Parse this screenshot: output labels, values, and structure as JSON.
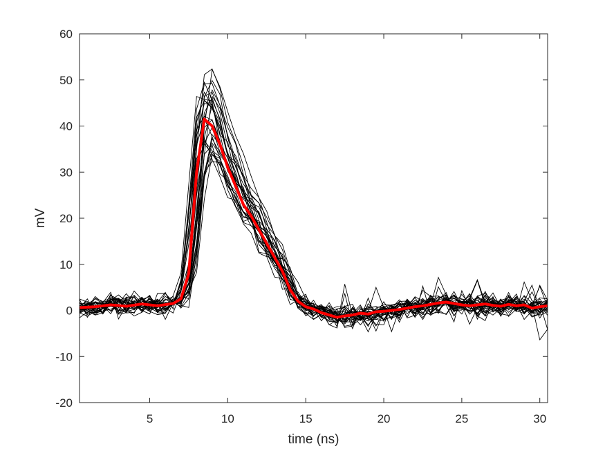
{
  "chart_data": {
    "type": "line",
    "title": "",
    "xlabel": "time (ns)",
    "ylabel": "mV",
    "xlim": [
      0.5,
      30.5
    ],
    "ylim": [
      -20,
      60
    ],
    "xticks": [
      5,
      10,
      15,
      20,
      25,
      30
    ],
    "yticks": [
      -20,
      -10,
      0,
      10,
      20,
      30,
      40,
      50,
      60
    ],
    "grid": false,
    "legend": "none",
    "colors": {
      "traces": "#000000",
      "mean": "#ff0000",
      "axes": "#262626"
    },
    "mean": {
      "x": [
        0.5,
        1.5,
        2.5,
        3.5,
        4.5,
        5.5,
        6.5,
        7.0,
        7.5,
        8.0,
        8.5,
        9.0,
        9.5,
        10.0,
        10.5,
        11.0,
        11.5,
        12.0,
        12.5,
        13.0,
        13.5,
        14.0,
        14.5,
        15.0,
        15.5,
        16.0,
        16.5,
        17.0,
        17.5,
        18.0,
        18.5,
        19.0,
        19.5,
        20.0,
        20.5,
        21.0,
        21.5,
        22.0,
        22.5,
        23.0,
        23.5,
        24.0,
        24.5,
        25.0,
        25.5,
        26.0,
        26.5,
        27.0,
        27.5,
        28.0,
        28.5,
        29.0,
        29.5,
        30.0,
        30.5
      ],
      "y": [
        0.6,
        0.8,
        1.2,
        0.9,
        1.4,
        1.0,
        1.5,
        2.5,
        8.0,
        30.0,
        41.5,
        40.0,
        36.0,
        31.0,
        27.0,
        23.0,
        20.5,
        17.5,
        14.5,
        11.5,
        8.5,
        4.5,
        2.0,
        0.8,
        0.3,
        -0.5,
        -1.0,
        -1.5,
        -1.2,
        -1.0,
        -0.6,
        -0.8,
        -0.3,
        -0.2,
        0.0,
        0.2,
        0.5,
        0.8,
        1.0,
        1.3,
        1.6,
        1.8,
        1.5,
        1.2,
        1.0,
        1.2,
        1.4,
        1.1,
        0.9,
        1.3,
        1.0,
        1.2,
        0.5,
        0.8,
        1.0
      ]
    },
    "individual_traces": {
      "count": 30,
      "peak_range": [
        33,
        54
      ],
      "baseline_noise_range": [
        -9,
        11
      ]
    }
  }
}
